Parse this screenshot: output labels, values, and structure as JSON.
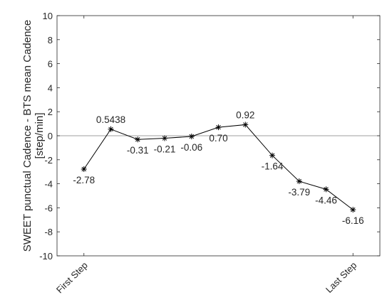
{
  "chart_data": {
    "type": "line",
    "ylabel_line1": "SWEET punctual Cadence - BTS mean Cadence",
    "ylabel_line2": "[step/min]",
    "xlabel": "",
    "ylim": [
      -10,
      10
    ],
    "yticks": [
      -10,
      -8,
      -6,
      -4,
      -2,
      0,
      2,
      4,
      6,
      8,
      10
    ],
    "x_tick_labels": [
      {
        "x": 1,
        "label": "First Step"
      },
      {
        "x": 11,
        "label": "Last Step"
      }
    ],
    "xlim": [
      0,
      12
    ],
    "grid": false,
    "zero_line": true,
    "series": [
      {
        "x": [
          1,
          2,
          3,
          4,
          5,
          6,
          7,
          8,
          9,
          10,
          11
        ],
        "values": [
          -2.78,
          0.5438,
          -0.31,
          -0.21,
          -0.06,
          0.7,
          0.92,
          -1.64,
          -3.79,
          -4.46,
          -6.16
        ],
        "labels": [
          "-2.78",
          "0.5438",
          "-0.31",
          "-0.21",
          "-0.06",
          "0.70",
          "0.92",
          "-1.64",
          "-3.79",
          "-4.46",
          "-6.16"
        ],
        "marker": "asterisk",
        "color": "#000000"
      }
    ]
  }
}
